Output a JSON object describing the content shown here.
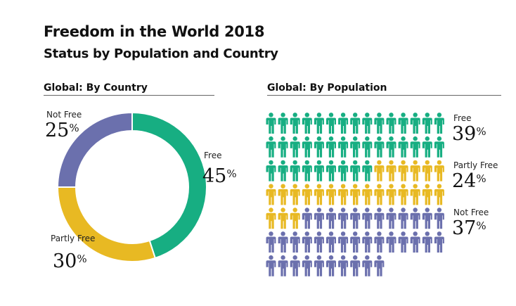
{
  "title": "Freedom in the World 2018",
  "subtitle": "Status by Population and Country",
  "chart_data": [
    {
      "type": "pie",
      "donut": true,
      "title": "Global: By Country",
      "categories": [
        "Free",
        "Partly Free",
        "Not Free"
      ],
      "values": [
        45,
        30,
        25
      ],
      "labels": [
        "45",
        "30",
        "25"
      ],
      "unit": "%",
      "colors": [
        "#17ae82",
        "#e8b923",
        "#6b70ad"
      ]
    },
    {
      "type": "pictogram",
      "title": "Global: By Population",
      "categories": [
        "Free",
        "Partly Free",
        "Not Free"
      ],
      "values": [
        39,
        24,
        37
      ],
      "labels": [
        "39",
        "24",
        "37"
      ],
      "unit": "%",
      "icon": "person-icon",
      "colors": [
        "#17ae82",
        "#e8b923",
        "#6b70ad"
      ]
    }
  ]
}
